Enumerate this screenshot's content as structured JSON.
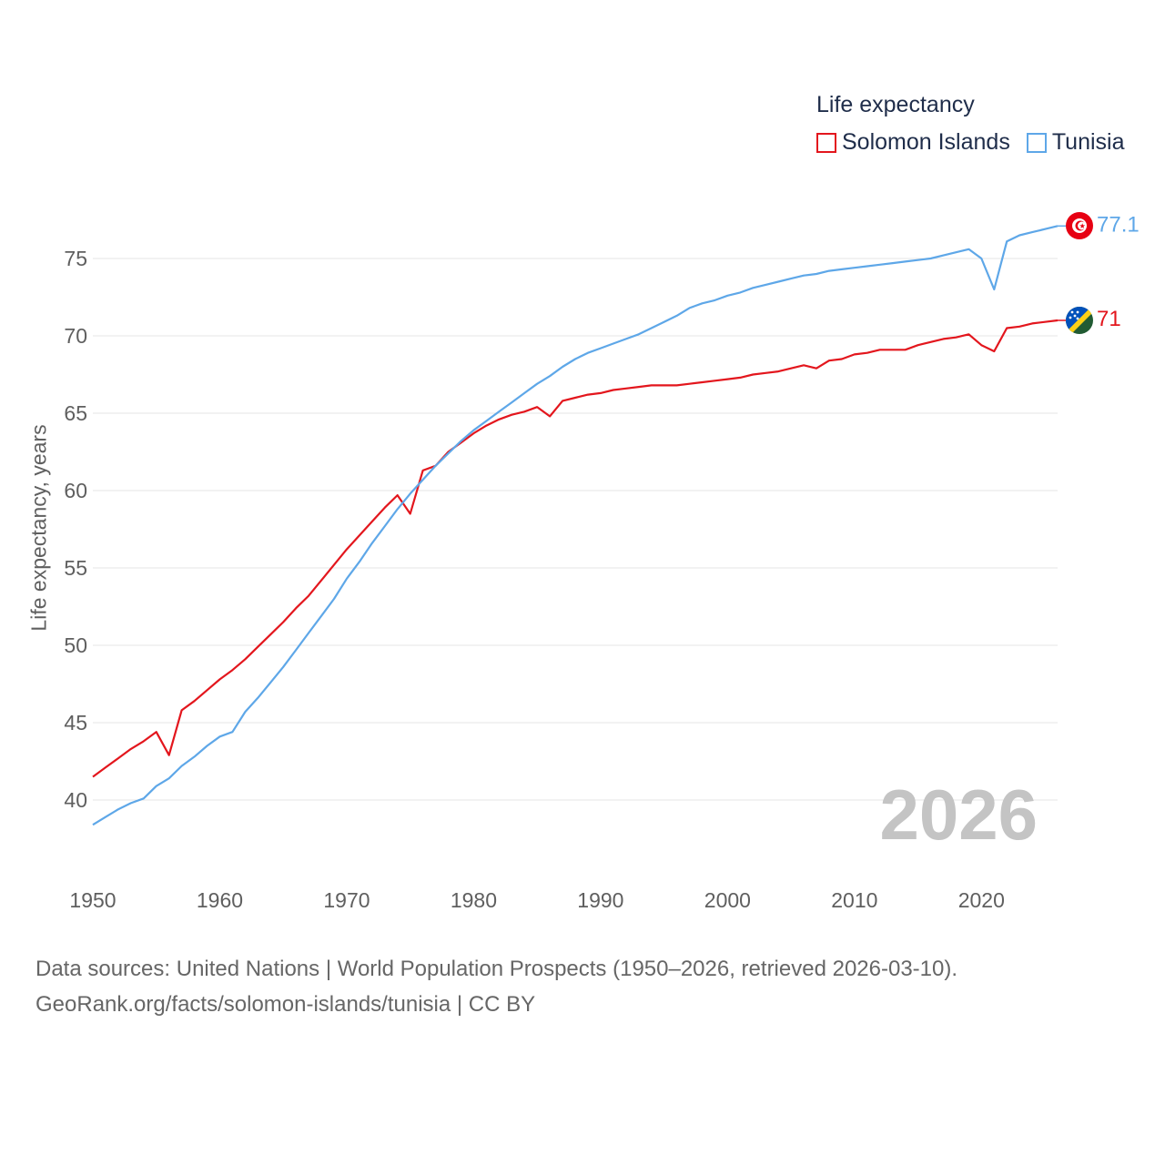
{
  "legend": {
    "title": "Life expectancy",
    "items": [
      {
        "label": "Solomon Islands",
        "color": "#e3161d"
      },
      {
        "label": "Tunisia",
        "color": "#5ea7e8"
      }
    ]
  },
  "current_year": "2026",
  "source": {
    "line1": "Data sources: United Nations | World Population Prospects (1950–2026, retrieved 2026-03-10).",
    "line2": "GeoRank.org/facts/solomon-islands/tunisia | CC BY"
  },
  "chart_data": {
    "type": "line",
    "title": "Life expectancy",
    "xlabel": "",
    "ylabel": "Life expectancy, years",
    "xlim": [
      1950,
      2026
    ],
    "ylim": [
      37.5,
      80
    ],
    "x_ticks": [
      1950,
      1960,
      1970,
      1980,
      1990,
      2000,
      2010,
      2020
    ],
    "y_ticks": [
      40,
      45,
      50,
      55,
      60,
      65,
      70,
      75
    ],
    "grid": true,
    "series": [
      {
        "name": "Solomon Islands",
        "color": "#e3161d",
        "end_label": "71",
        "x": [
          1950,
          1951,
          1952,
          1953,
          1954,
          1955,
          1956,
          1957,
          1958,
          1959,
          1960,
          1961,
          1962,
          1963,
          1964,
          1965,
          1966,
          1967,
          1968,
          1969,
          1970,
          1971,
          1972,
          1973,
          1974,
          1975,
          1976,
          1977,
          1978,
          1979,
          1980,
          1981,
          1982,
          1983,
          1984,
          1985,
          1986,
          1987,
          1988,
          1989,
          1990,
          1991,
          1992,
          1993,
          1994,
          1995,
          1996,
          1997,
          1998,
          1999,
          2000,
          2001,
          2002,
          2003,
          2004,
          2005,
          2006,
          2007,
          2008,
          2009,
          2010,
          2011,
          2012,
          2013,
          2014,
          2015,
          2016,
          2017,
          2018,
          2019,
          2020,
          2021,
          2022,
          2023,
          2024,
          2025,
          2026
        ],
        "y": [
          41.5,
          42.1,
          42.7,
          43.3,
          43.8,
          44.4,
          42.9,
          45.8,
          46.4,
          47.1,
          47.8,
          48.4,
          49.1,
          49.9,
          50.7,
          51.5,
          52.4,
          53.2,
          54.2,
          55.2,
          56.2,
          57.1,
          58.0,
          58.9,
          59.7,
          58.5,
          61.3,
          61.6,
          62.5,
          63.1,
          63.7,
          64.2,
          64.6,
          64.9,
          65.1,
          65.4,
          64.8,
          65.8,
          66.0,
          66.2,
          66.3,
          66.5,
          66.6,
          66.7,
          66.8,
          66.8,
          66.8,
          66.9,
          67.0,
          67.1,
          67.2,
          67.3,
          67.5,
          67.6,
          67.7,
          67.9,
          68.1,
          67.9,
          68.4,
          68.5,
          68.8,
          68.9,
          69.1,
          69.1,
          69.1,
          69.4,
          69.6,
          69.8,
          69.9,
          70.1,
          69.4,
          69.0,
          70.5,
          70.6,
          70.8,
          70.9,
          71.0
        ]
      },
      {
        "name": "Tunisia",
        "color": "#5ea7e8",
        "end_label": "77.1",
        "x": [
          1950,
          1951,
          1952,
          1953,
          1954,
          1955,
          1956,
          1957,
          1958,
          1959,
          1960,
          1961,
          1962,
          1963,
          1964,
          1965,
          1966,
          1967,
          1968,
          1969,
          1970,
          1971,
          1972,
          1973,
          1974,
          1975,
          1976,
          1977,
          1978,
          1979,
          1980,
          1981,
          1982,
          1983,
          1984,
          1985,
          1986,
          1987,
          1988,
          1989,
          1990,
          1991,
          1992,
          1993,
          1994,
          1995,
          1996,
          1997,
          1998,
          1999,
          2000,
          2001,
          2002,
          2003,
          2004,
          2005,
          2006,
          2007,
          2008,
          2009,
          2010,
          2011,
          2012,
          2013,
          2014,
          2015,
          2016,
          2017,
          2018,
          2019,
          2020,
          2021,
          2022,
          2023,
          2024,
          2025,
          2026
        ],
        "y": [
          38.4,
          38.9,
          39.4,
          39.8,
          40.1,
          40.9,
          41.4,
          42.2,
          42.8,
          43.5,
          44.1,
          44.4,
          45.7,
          46.6,
          47.6,
          48.6,
          49.7,
          50.8,
          51.9,
          53.0,
          54.3,
          55.4,
          56.6,
          57.7,
          58.8,
          59.8,
          60.7,
          61.6,
          62.4,
          63.2,
          63.9,
          64.5,
          65.1,
          65.7,
          66.3,
          66.9,
          67.4,
          68.0,
          68.5,
          68.9,
          69.2,
          69.5,
          69.8,
          70.1,
          70.5,
          70.9,
          71.3,
          71.8,
          72.1,
          72.3,
          72.6,
          72.8,
          73.1,
          73.3,
          73.5,
          73.7,
          73.9,
          74.0,
          74.2,
          74.3,
          74.4,
          74.5,
          74.6,
          74.7,
          74.8,
          74.9,
          75.0,
          75.2,
          75.4,
          75.6,
          75.0,
          73.0,
          76.1,
          76.5,
          76.7,
          76.9,
          77.1
        ]
      }
    ]
  }
}
